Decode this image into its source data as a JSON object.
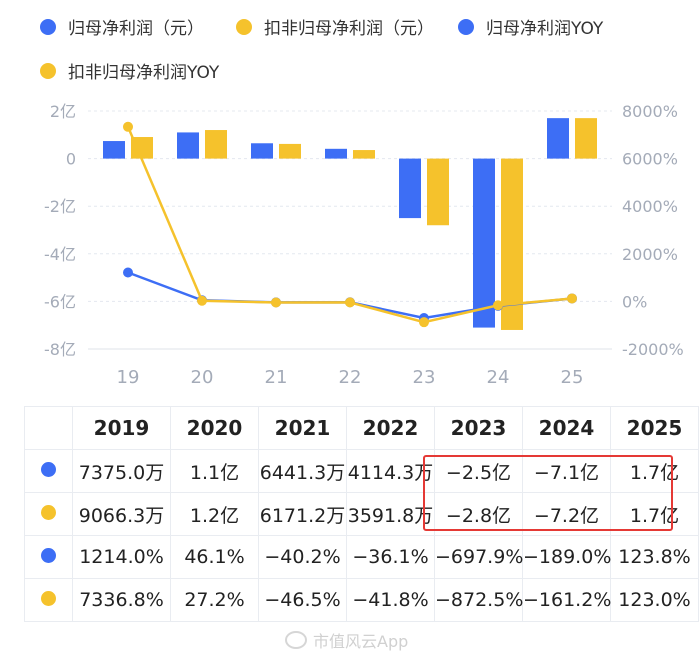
{
  "legend": [
    {
      "label": "归母净利润（元）",
      "color": "#3d6ef5"
    },
    {
      "label": "扣非归母净利润（元）",
      "color": "#f5c22c"
    },
    {
      "label": "归母净利润YOY",
      "color": "#3d6ef5"
    },
    {
      "label": "扣非归母净利润YOY",
      "color": "#f5c22c"
    }
  ],
  "chart_data": {
    "type": "bar",
    "categories": [
      "19",
      "20",
      "21",
      "22",
      "23",
      "24",
      "25"
    ],
    "y_left": {
      "ylim": [
        -8,
        2
      ],
      "ticks": [
        "2亿",
        "0",
        "-2亿",
        "-4亿",
        "-6亿",
        "-8亿"
      ],
      "unit": "亿"
    },
    "y_right": {
      "ylim": [
        -2000,
        8000
      ],
      "ticks": [
        "8000%",
        "6000%",
        "4000%",
        "2000%",
        "0%",
        "-2000%"
      ]
    },
    "series": [
      {
        "name": "归母净利润（元）",
        "type": "bar",
        "axis": "left",
        "color": "#3d6ef5",
        "values": [
          0.7375,
          1.1,
          0.6441,
          0.4114,
          -2.5,
          -7.1,
          1.7
        ]
      },
      {
        "name": "扣非归母净利润（元）",
        "type": "bar",
        "axis": "left",
        "color": "#f5c22c",
        "values": [
          0.9066,
          1.2,
          0.6171,
          0.3592,
          -2.8,
          -7.2,
          1.7
        ]
      },
      {
        "name": "归母净利润YOY",
        "type": "line",
        "axis": "right",
        "color": "#3d6ef5",
        "values": [
          1214.0,
          46.1,
          -40.2,
          -36.1,
          -697.9,
          -189.0,
          123.8
        ]
      },
      {
        "name": "扣非归母净利润YOY",
        "type": "line",
        "axis": "right",
        "color": "#f5c22c",
        "values": [
          7336.8,
          27.2,
          -46.5,
          -41.8,
          -872.5,
          -161.2,
          123.0
        ]
      }
    ]
  },
  "table": {
    "header": [
      "",
      "2019",
      "2020",
      "2021",
      "2022",
      "2023",
      "2024",
      "2025"
    ],
    "rows": [
      {
        "color": "#3d6ef5",
        "cells": [
          "7375.0万",
          "1.1亿",
          "6441.3万",
          "4114.3万",
          "−2.5亿",
          "−7.1亿",
          "1.7亿"
        ]
      },
      {
        "color": "#f5c22c",
        "cells": [
          "9066.3万",
          "1.2亿",
          "6171.2万",
          "3591.8万",
          "−2.8亿",
          "−7.2亿",
          "1.7亿"
        ]
      },
      {
        "color": "#3d6ef5",
        "cells": [
          "1214.0%",
          "46.1%",
          "−40.2%",
          "−36.1%",
          "−697.9%",
          "−189.0%",
          "123.8%"
        ]
      },
      {
        "color": "#f5c22c",
        "cells": [
          "7336.8%",
          "27.2%",
          "−46.5%",
          "−41.8%",
          "−872.5%",
          "−161.2%",
          "123.0%"
        ]
      }
    ]
  },
  "watermark": "市值风云App"
}
